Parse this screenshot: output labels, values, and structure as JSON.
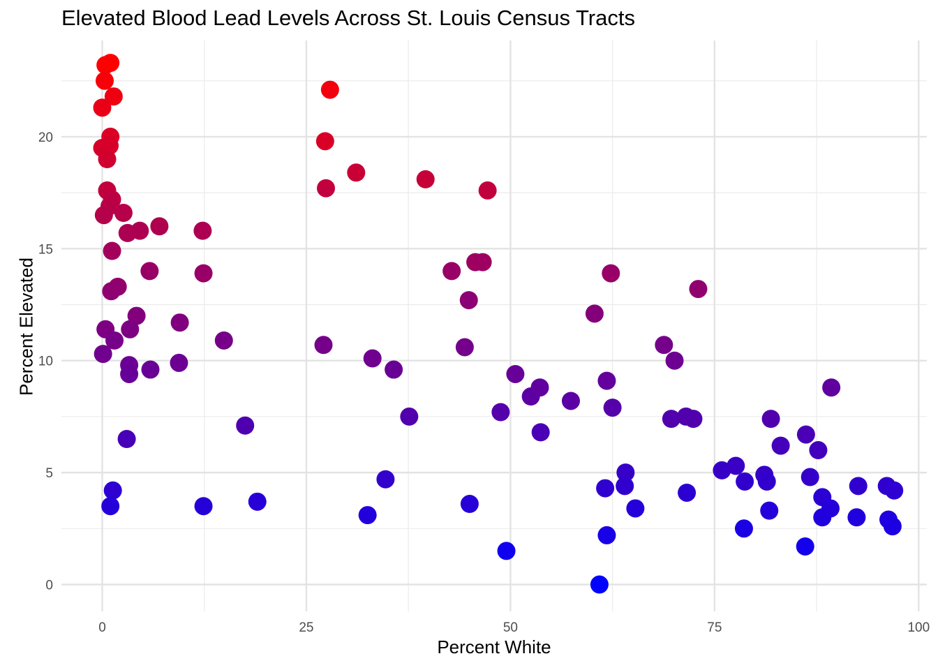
{
  "chart_data": {
    "type": "scatter",
    "title": "Elevated Blood Lead Levels Across St. Louis Census Tracts",
    "xlabel": "Percent White",
    "ylabel": "Percent Elevated",
    "xlim": [
      -5,
      101
    ],
    "ylim": [
      -1.2,
      24.3
    ],
    "x_ticks": [
      0,
      25,
      50,
      75,
      100
    ],
    "y_ticks": [
      0,
      5,
      10,
      15,
      20
    ],
    "grid": true,
    "color_scale": {
      "low": "#0000ff",
      "high": "#ff0000",
      "domain": [
        0,
        23.3
      ]
    },
    "points": [
      {
        "x": 0.4,
        "y": 23.2
      },
      {
        "x": 1.0,
        "y": 23.3
      },
      {
        "x": 0.3,
        "y": 22.5
      },
      {
        "x": 1.4,
        "y": 21.8
      },
      {
        "x": 0.0,
        "y": 21.3
      },
      {
        "x": 1.0,
        "y": 20.0
      },
      {
        "x": 0.0,
        "y": 19.5
      },
      {
        "x": 0.9,
        "y": 19.6
      },
      {
        "x": 0.6,
        "y": 19.0
      },
      {
        "x": 0.6,
        "y": 17.6
      },
      {
        "x": 1.2,
        "y": 17.2
      },
      {
        "x": 0.9,
        "y": 16.9
      },
      {
        "x": 0.2,
        "y": 16.5
      },
      {
        "x": 2.6,
        "y": 16.6
      },
      {
        "x": 3.1,
        "y": 15.7
      },
      {
        "x": 4.6,
        "y": 15.8
      },
      {
        "x": 7.0,
        "y": 16.0
      },
      {
        "x": 1.2,
        "y": 14.9
      },
      {
        "x": 5.8,
        "y": 14.0
      },
      {
        "x": 1.9,
        "y": 13.3
      },
      {
        "x": 1.1,
        "y": 13.1
      },
      {
        "x": 12.3,
        "y": 15.8
      },
      {
        "x": 12.4,
        "y": 13.9
      },
      {
        "x": 4.2,
        "y": 12.0
      },
      {
        "x": 0.4,
        "y": 11.4
      },
      {
        "x": 3.4,
        "y": 11.4
      },
      {
        "x": 1.5,
        "y": 10.9
      },
      {
        "x": 9.5,
        "y": 11.7
      },
      {
        "x": 14.9,
        "y": 10.9
      },
      {
        "x": 0.1,
        "y": 10.3
      },
      {
        "x": 3.3,
        "y": 9.8
      },
      {
        "x": 3.3,
        "y": 9.4
      },
      {
        "x": 5.9,
        "y": 9.6
      },
      {
        "x": 9.4,
        "y": 9.9
      },
      {
        "x": 3.0,
        "y": 6.5
      },
      {
        "x": 17.5,
        "y": 7.1
      },
      {
        "x": 1.3,
        "y": 4.2
      },
      {
        "x": 1.0,
        "y": 3.5
      },
      {
        "x": 12.4,
        "y": 3.5
      },
      {
        "x": 19.0,
        "y": 3.7
      },
      {
        "x": 27.9,
        "y": 22.1
      },
      {
        "x": 27.3,
        "y": 19.8
      },
      {
        "x": 31.1,
        "y": 18.4
      },
      {
        "x": 27.4,
        "y": 17.7
      },
      {
        "x": 39.6,
        "y": 18.1
      },
      {
        "x": 47.2,
        "y": 17.6
      },
      {
        "x": 42.8,
        "y": 14.0
      },
      {
        "x": 45.7,
        "y": 14.4
      },
      {
        "x": 46.6,
        "y": 14.4
      },
      {
        "x": 44.9,
        "y": 12.7
      },
      {
        "x": 27.1,
        "y": 10.7
      },
      {
        "x": 44.4,
        "y": 10.6
      },
      {
        "x": 33.1,
        "y": 10.1
      },
      {
        "x": 35.7,
        "y": 9.6
      },
      {
        "x": 37.6,
        "y": 7.5
      },
      {
        "x": 48.8,
        "y": 7.7
      },
      {
        "x": 50.6,
        "y": 9.4
      },
      {
        "x": 52.5,
        "y": 8.4
      },
      {
        "x": 53.6,
        "y": 8.8
      },
      {
        "x": 53.7,
        "y": 6.8
      },
      {
        "x": 34.7,
        "y": 4.7
      },
      {
        "x": 32.5,
        "y": 3.1
      },
      {
        "x": 45.0,
        "y": 3.6
      },
      {
        "x": 49.5,
        "y": 1.5
      },
      {
        "x": 57.4,
        "y": 8.2
      },
      {
        "x": 60.3,
        "y": 12.1
      },
      {
        "x": 62.3,
        "y": 13.9
      },
      {
        "x": 61.8,
        "y": 9.1
      },
      {
        "x": 62.5,
        "y": 7.9
      },
      {
        "x": 73.0,
        "y": 13.2
      },
      {
        "x": 68.8,
        "y": 10.7
      },
      {
        "x": 70.1,
        "y": 10.0
      },
      {
        "x": 69.7,
        "y": 7.4
      },
      {
        "x": 71.5,
        "y": 7.5
      },
      {
        "x": 72.4,
        "y": 7.4
      },
      {
        "x": 64.1,
        "y": 5.0
      },
      {
        "x": 61.6,
        "y": 4.3
      },
      {
        "x": 64.0,
        "y": 4.4
      },
      {
        "x": 65.3,
        "y": 3.4
      },
      {
        "x": 71.6,
        "y": 4.1
      },
      {
        "x": 61.8,
        "y": 2.2
      },
      {
        "x": 60.9,
        "y": 0.0
      },
      {
        "x": 75.9,
        "y": 5.1
      },
      {
        "x": 77.6,
        "y": 5.3
      },
      {
        "x": 78.7,
        "y": 4.6
      },
      {
        "x": 81.1,
        "y": 4.9
      },
      {
        "x": 81.4,
        "y": 4.6
      },
      {
        "x": 81.9,
        "y": 7.4
      },
      {
        "x": 83.1,
        "y": 6.2
      },
      {
        "x": 86.2,
        "y": 6.7
      },
      {
        "x": 86.7,
        "y": 4.8
      },
      {
        "x": 87.7,
        "y": 6.0
      },
      {
        "x": 89.3,
        "y": 8.8
      },
      {
        "x": 88.2,
        "y": 3.9
      },
      {
        "x": 89.2,
        "y": 3.4
      },
      {
        "x": 88.2,
        "y": 3.0
      },
      {
        "x": 81.7,
        "y": 3.3
      },
      {
        "x": 78.6,
        "y": 2.5
      },
      {
        "x": 86.1,
        "y": 1.7
      },
      {
        "x": 92.6,
        "y": 4.4
      },
      {
        "x": 92.4,
        "y": 3.0
      },
      {
        "x": 96.1,
        "y": 4.4
      },
      {
        "x": 97.0,
        "y": 4.2
      },
      {
        "x": 96.3,
        "y": 2.9
      },
      {
        "x": 96.8,
        "y": 2.6
      }
    ]
  }
}
